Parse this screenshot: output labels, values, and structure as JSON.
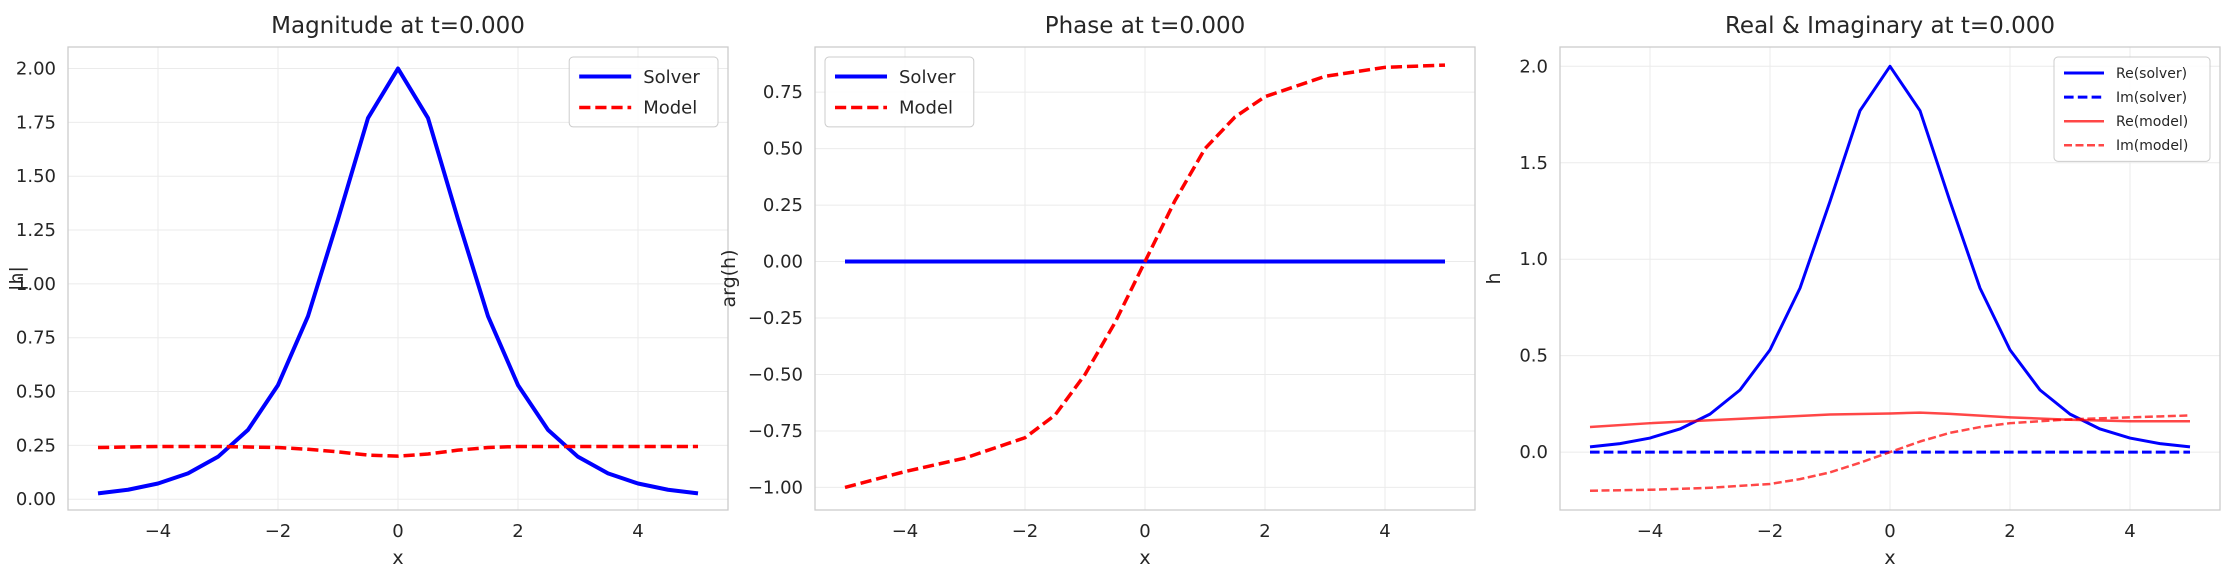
{
  "chart_data": [
    {
      "type": "line",
      "title": "Magnitude at t=0.000",
      "xlabel": "x",
      "ylabel": "|h|",
      "xlim": [
        -5.5,
        5.5
      ],
      "ylim": [
        -0.05,
        2.1
      ],
      "xticks": [
        -4,
        -2,
        0,
        2,
        4
      ],
      "xtick_labels": [
        "−4",
        "−2",
        "0",
        "2",
        "4"
      ],
      "yticks": [
        0,
        0.25,
        0.5,
        0.75,
        1.0,
        1.25,
        1.5,
        1.75,
        2.0
      ],
      "ytick_labels": [
        "0.00",
        "0.25",
        "0.50",
        "0.75",
        "1.00",
        "1.25",
        "1.50",
        "1.75",
        "2.00"
      ],
      "grid": true,
      "legend": {
        "position": "upper right",
        "font_size": 18
      },
      "series": [
        {
          "name": "Solver",
          "color": "#0000ff",
          "dash": "solid",
          "width": 4,
          "x": [
            -5,
            -4.5,
            -4,
            -3.5,
            -3,
            -2.5,
            -2,
            -1.5,
            -1,
            -0.5,
            0,
            0.5,
            1,
            1.5,
            2,
            2.5,
            3,
            3.5,
            4,
            4.5,
            5
          ],
          "y": [
            0.027,
            0.044,
            0.073,
            0.12,
            0.197,
            0.322,
            0.53,
            0.85,
            1.3,
            1.77,
            2.0,
            1.77,
            1.3,
            0.85,
            0.53,
            0.322,
            0.197,
            0.12,
            0.073,
            0.044,
            0.027
          ]
        },
        {
          "name": "Model",
          "color": "#ff0000",
          "dash": "dashed",
          "width": 3.5,
          "x": [
            -5,
            -4,
            -3,
            -2,
            -1.5,
            -1,
            -0.5,
            0,
            0.5,
            1,
            1.5,
            2,
            3,
            4,
            5
          ],
          "y": [
            0.24,
            0.245,
            0.245,
            0.24,
            0.232,
            0.22,
            0.205,
            0.2,
            0.21,
            0.228,
            0.24,
            0.245,
            0.245,
            0.245,
            0.245
          ]
        }
      ]
    },
    {
      "type": "line",
      "title": "Phase at t=0.000",
      "xlabel": "x",
      "ylabel": "arg(h)",
      "xlim": [
        -5.5,
        5.5
      ],
      "ylim": [
        -1.1,
        0.95
      ],
      "xticks": [
        -4,
        -2,
        0,
        2,
        4
      ],
      "xtick_labels": [
        "−4",
        "−2",
        "0",
        "2",
        "4"
      ],
      "yticks": [
        -1.0,
        -0.75,
        -0.5,
        -0.25,
        0,
        0.25,
        0.5,
        0.75
      ],
      "ytick_labels": [
        "−1.00",
        "−0.75",
        "−0.50",
        "−0.25",
        "0.00",
        "0.25",
        "0.50",
        "0.75"
      ],
      "grid": true,
      "legend": {
        "position": "upper left",
        "font_size": 18
      },
      "series": [
        {
          "name": "Solver",
          "color": "#0000ff",
          "dash": "solid",
          "width": 4,
          "x": [
            -5,
            5
          ],
          "y": [
            0,
            0
          ]
        },
        {
          "name": "Model",
          "color": "#ff0000",
          "dash": "dashed",
          "width": 3.5,
          "x": [
            -5,
            -4,
            -3,
            -2,
            -1.5,
            -1,
            -0.5,
            0,
            0.5,
            1,
            1.5,
            2,
            3,
            4,
            5
          ],
          "y": [
            -1.0,
            -0.93,
            -0.87,
            -0.78,
            -0.68,
            -0.5,
            -0.27,
            0.0,
            0.27,
            0.5,
            0.64,
            0.73,
            0.82,
            0.86,
            0.87
          ]
        }
      ]
    },
    {
      "type": "line",
      "title": "Real & Imaginary at t=0.000",
      "xlabel": "x",
      "ylabel": "h",
      "xlim": [
        -5.5,
        5.5
      ],
      "ylim": [
        -0.3,
        2.1
      ],
      "xticks": [
        -4,
        -2,
        0,
        2,
        4
      ],
      "xtick_labels": [
        "−4",
        "−2",
        "0",
        "2",
        "4"
      ],
      "yticks": [
        0,
        0.5,
        1.0,
        1.5,
        2.0
      ],
      "ytick_labels": [
        "0.0",
        "0.5",
        "1.0",
        "1.5",
        "2.0"
      ],
      "grid": true,
      "legend": {
        "position": "upper right",
        "font_size": 14
      },
      "series": [
        {
          "name": "Re(solver)",
          "color": "#0000ff",
          "dash": "solid",
          "width": 3,
          "opacity": 1,
          "x": [
            -5,
            -4.5,
            -4,
            -3.5,
            -3,
            -2.5,
            -2,
            -1.5,
            -1,
            -0.5,
            0,
            0.5,
            1,
            1.5,
            2,
            2.5,
            3,
            3.5,
            4,
            4.5,
            5
          ],
          "y": [
            0.027,
            0.044,
            0.073,
            0.12,
            0.197,
            0.322,
            0.53,
            0.85,
            1.3,
            1.77,
            2.0,
            1.77,
            1.3,
            0.85,
            0.53,
            0.322,
            0.197,
            0.12,
            0.073,
            0.044,
            0.027
          ]
        },
        {
          "name": "Im(solver)",
          "color": "#0000ff",
          "dash": "dashed",
          "width": 3,
          "opacity": 1,
          "x": [
            -5,
            5
          ],
          "y": [
            0,
            0
          ]
        },
        {
          "name": "Re(model)",
          "color": "#ff0000",
          "dash": "solid",
          "width": 2.5,
          "opacity": 0.72,
          "x": [
            -5,
            -4,
            -3,
            -2,
            -1,
            0,
            0.5,
            1,
            2,
            3,
            4,
            5
          ],
          "y": [
            0.13,
            0.15,
            0.165,
            0.18,
            0.195,
            0.2,
            0.205,
            0.198,
            0.18,
            0.168,
            0.16,
            0.16
          ]
        },
        {
          "name": "Im(model)",
          "color": "#ff0000",
          "dash": "dashed",
          "width": 2.5,
          "opacity": 0.72,
          "x": [
            -5,
            -4,
            -3,
            -2,
            -1.5,
            -1,
            -0.5,
            0,
            0.5,
            1,
            1.5,
            2,
            3,
            4,
            5
          ],
          "y": [
            -0.2,
            -0.195,
            -0.185,
            -0.165,
            -0.14,
            -0.105,
            -0.055,
            0.0,
            0.055,
            0.1,
            0.13,
            0.15,
            0.17,
            0.18,
            0.19
          ]
        }
      ]
    }
  ]
}
